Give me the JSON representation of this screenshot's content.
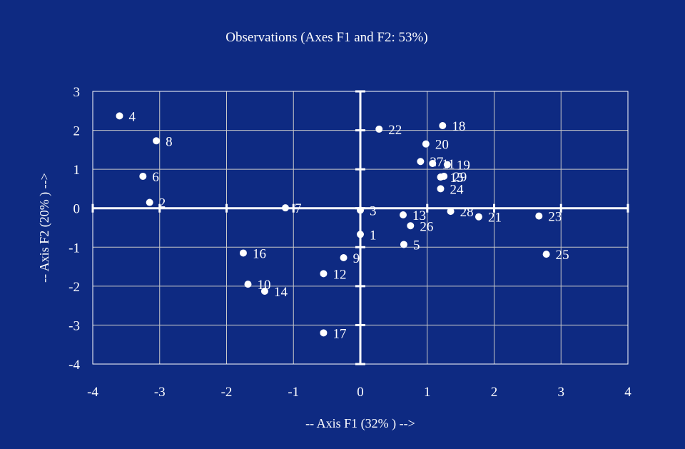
{
  "chart_data": {
    "type": "scatter",
    "title": "Observations (Axes F1 and F2: 53%)",
    "xlabel": "-- Axis F1 (32% ) -->",
    "ylabel": "-- Axis F2 (20% ) -->",
    "xlim": [
      -4,
      4
    ],
    "ylim": [
      -4,
      3
    ],
    "xticks": [
      "-4",
      "-3",
      "-2",
      "-1",
      "0",
      "1",
      "2",
      "3",
      "4"
    ],
    "yticks": [
      "3",
      "2",
      "1",
      "0",
      "-1",
      "-2",
      "-3",
      "-4"
    ],
    "grid": true,
    "colors": {
      "background": "#0e2a82",
      "foreground": "#ffffff",
      "grid": "#c8c8c8"
    },
    "points": [
      {
        "label": "1",
        "x": 0.0,
        "y": -0.67
      },
      {
        "label": "2",
        "x": -3.15,
        "y": 0.15
      },
      {
        "label": "3",
        "x": 0.0,
        "y": -0.05
      },
      {
        "label": "4",
        "x": -3.6,
        "y": 2.37
      },
      {
        "label": "5",
        "x": 0.65,
        "y": -0.93
      },
      {
        "label": "6",
        "x": -3.25,
        "y": 0.82
      },
      {
        "label": "7",
        "x": -1.12,
        "y": 0.01
      },
      {
        "label": "8",
        "x": -3.05,
        "y": 1.73
      },
      {
        "label": "9",
        "x": -0.25,
        "y": -1.27
      },
      {
        "label": "10",
        "x": -1.68,
        "y": -1.95
      },
      {
        "label": "11",
        "x": 1.08,
        "y": 1.15
      },
      {
        "label": "12",
        "x": -0.55,
        "y": -1.68
      },
      {
        "label": "13",
        "x": 0.64,
        "y": -0.17
      },
      {
        "label": "14",
        "x": -1.43,
        "y": -2.13
      },
      {
        "label": "15",
        "x": 1.2,
        "y": 0.8
      },
      {
        "label": "16",
        "x": -1.75,
        "y": -1.15
      },
      {
        "label": "17",
        "x": -0.55,
        "y": -3.2
      },
      {
        "label": "18",
        "x": 1.23,
        "y": 2.12
      },
      {
        "label": "19",
        "x": 1.3,
        "y": 1.12
      },
      {
        "label": "20",
        "x": 0.98,
        "y": 1.65
      },
      {
        "label": "21",
        "x": 1.77,
        "y": -0.22
      },
      {
        "label": "22",
        "x": 0.28,
        "y": 2.03
      },
      {
        "label": "23",
        "x": 2.67,
        "y": -0.2
      },
      {
        "label": "24",
        "x": 1.2,
        "y": 0.5
      },
      {
        "label": "25",
        "x": 2.78,
        "y": -1.18
      },
      {
        "label": "26",
        "x": 0.75,
        "y": -0.45
      },
      {
        "label": "27",
        "x": 0.9,
        "y": 1.2
      },
      {
        "label": "28",
        "x": 1.35,
        "y": -0.08
      },
      {
        "label": "29",
        "x": 1.25,
        "y": 0.82
      }
    ]
  }
}
